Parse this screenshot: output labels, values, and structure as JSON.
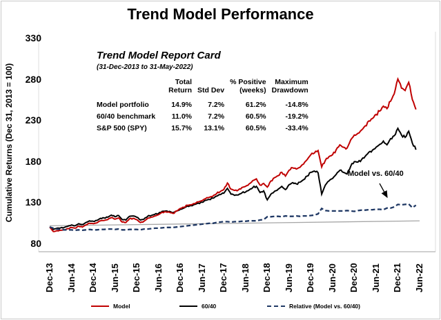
{
  "title": "Trend Model Performance",
  "report_card": {
    "title": "Trend Model Report Card",
    "subtitle": "(31-Dec-2013 to 31-May-2022)",
    "columns": [
      [
        "Total",
        "Return"
      ],
      [
        "",
        "Std Dev"
      ],
      [
        "% Positive",
        "(weeks)"
      ],
      [
        "Maximum",
        "Drawdown"
      ]
    ],
    "rows": [
      [
        "Model portfolio",
        "14.9%",
        "7.2%",
        "61.2%",
        "-14.8%"
      ],
      [
        "60/40 benchmark",
        "11.0%",
        "7.2%",
        "60.5%",
        "-19.2%"
      ],
      [
        "S&P 500 (SPY)",
        "15.7%",
        "13.1%",
        "60.5%",
        "-33.4%"
      ]
    ]
  },
  "annotation": {
    "label": "Model vs. 60/40"
  },
  "legend": [
    {
      "label": "Model",
      "color": "#C00000",
      "dashed": false
    },
    {
      "label": "60/40",
      "color": "#000000",
      "dashed": false
    },
    {
      "label": "Relative (Model vs. 60/40)",
      "color": "#1F3864",
      "dashed": true
    }
  ],
  "colors": {
    "model": "#C00000",
    "benchmark": "#000000",
    "relative": "#1F3864",
    "reference": "#A6A6A6",
    "axis": "#BFBFBF"
  },
  "chart_data": {
    "type": "line",
    "title": "Trend Model Performance",
    "xlabel": "",
    "ylabel": "Cumulative Returns (Dec 31, 2013 = 100)",
    "ylim": [
      80,
      330
    ],
    "yticks": [
      330,
      280,
      230,
      180,
      130,
      80
    ],
    "xticks": [
      "Dec-13",
      "Jun-14",
      "Dec-14",
      "Jun-15",
      "Dec-15",
      "Jun-16",
      "Dec-16",
      "Jun-17",
      "Dec-17",
      "Jun-18",
      "Dec-18",
      "Jun-19",
      "Dec-19",
      "Jun-20",
      "Dec-20",
      "Jun-21",
      "Dec-21",
      "Jun-22"
    ],
    "x_frequency": "monthly",
    "x_range": "Dec-2013 to May-2022",
    "grid": false,
    "legend_position": "bottom",
    "series": [
      {
        "name": "Model",
        "color": "#C00000",
        "style": "solid",
        "values": [
          100,
          94.5,
          95.5,
          96,
          96.5,
          98,
          99.5,
          98.5,
          101,
          100,
          102.5,
          104.5,
          104,
          105,
          107.5,
          108,
          109,
          111.5,
          109.5,
          111,
          106,
          105.5,
          110,
          110.5,
          109,
          105.5,
          107,
          110.5,
          112,
          113.5,
          115,
          118,
          118.5,
          118,
          116.5,
          119.5,
          122.5,
          124,
          126.5,
          127,
          128.5,
          130.5,
          132,
          134.5,
          136,
          137.5,
          140.5,
          143,
          145.5,
          153.5,
          146,
          144.5,
          145,
          148,
          149.5,
          152.5,
          156.5,
          158.5,
          151,
          153,
          148.5,
          156,
          160,
          162.5,
          166.5,
          162,
          169,
          172,
          170.5,
          172.5,
          176.5,
          182,
          188,
          190,
          193,
          173,
          181,
          185.5,
          188,
          194,
          200,
          197,
          196,
          206,
          212,
          214,
          218,
          223,
          229,
          232,
          237,
          241,
          247,
          244,
          253,
          262,
          280,
          269,
          266,
          276,
          255,
          243
        ]
      },
      {
        "name": "60/40",
        "color": "#000000",
        "style": "solid",
        "values": [
          100,
          97,
          98.5,
          99,
          99.5,
          101,
          102.5,
          101.5,
          104,
          103,
          105.5,
          107.5,
          107,
          108,
          110.5,
          111,
          112,
          114.5,
          112.5,
          114,
          109,
          108.5,
          113,
          113.5,
          112,
          108.5,
          109.5,
          113,
          114,
          115.5,
          116.5,
          119,
          119.5,
          119,
          117.5,
          119.5,
          121.5,
          123,
          125.5,
          126,
          127.5,
          129,
          130,
          132.5,
          133.5,
          135,
          137.5,
          139.5,
          141,
          147,
          140,
          138.5,
          139,
          141.5,
          142.5,
          145,
          148,
          149.5,
          142,
          144,
          133,
          140,
          143.5,
          146,
          149.5,
          145.5,
          151.5,
          154,
          152.5,
          154.5,
          157.5,
          162,
          166.5,
          168,
          166,
          140,
          151,
          156,
          159,
          164,
          169,
          166.5,
          164.5,
          174,
          179.5,
          179,
          182,
          186,
          191,
          193.5,
          197,
          200.5,
          204.5,
          200,
          207.5,
          211,
          220,
          212,
          209,
          216.5,
          202,
          194
        ]
      },
      {
        "name": "Relative (Model vs. 60/40)",
        "color": "#1F3864",
        "style": "dashed",
        "values": [
          100,
          98.5,
          97.5,
          97,
          96.5,
          96.5,
          96.5,
          96,
          96.5,
          96,
          96.5,
          97,
          96.5,
          96.5,
          97,
          97,
          97.5,
          97.5,
          97,
          97.5,
          96.5,
          96.5,
          97,
          97,
          97,
          96.5,
          97.5,
          97.5,
          98,
          98.5,
          98.5,
          99,
          99.5,
          99.5,
          99.5,
          100,
          100.5,
          101,
          101.5,
          102,
          102.5,
          103,
          103.5,
          104,
          104.5,
          104.5,
          105.5,
          106,
          106.5,
          106.5,
          106,
          106.5,
          106.5,
          107,
          107,
          107.5,
          107.5,
          107.5,
          108.5,
          109,
          112.5,
          112.5,
          113,
          113,
          112.5,
          113.5,
          113,
          113,
          113.5,
          113,
          113.5,
          113.5,
          114,
          114.5,
          116,
          122.5,
          120,
          119.5,
          119.5,
          119.5,
          119.5,
          119.5,
          120,
          119.5,
          119,
          120,
          120.5,
          120.5,
          121,
          121,
          121.5,
          121.5,
          121,
          123,
          123,
          124.5,
          127.5,
          127,
          127.5,
          128,
          123.5,
          126.5
        ]
      }
    ],
    "reference_line": {
      "name": "trend reference",
      "color": "#A6A6A6",
      "start": 101.5,
      "end": 107.5
    }
  }
}
